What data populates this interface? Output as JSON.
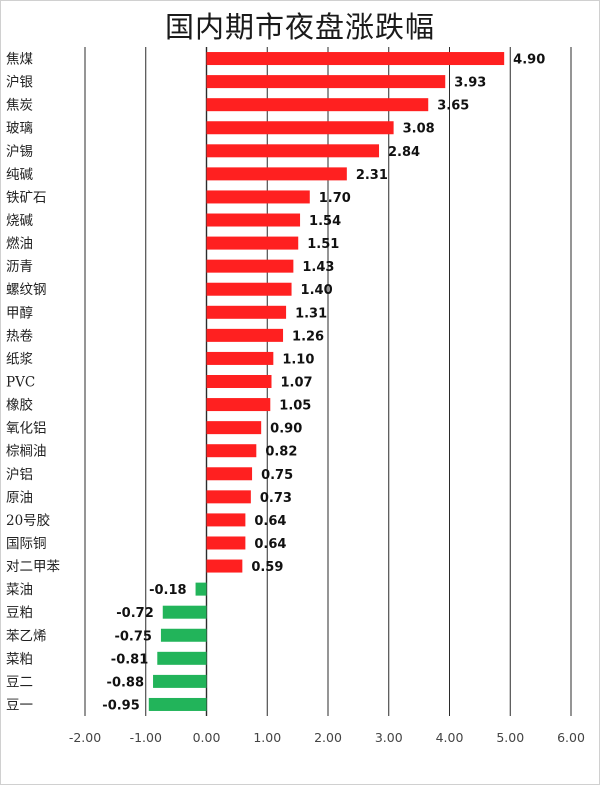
{
  "chart_data": {
    "type": "bar",
    "orientation": "horizontal",
    "title": "国内期市夜盘涨跌幅",
    "categories": [
      "焦煤",
      "沪银",
      "焦炭",
      "玻璃",
      "沪锡",
      "纯碱",
      "铁矿石",
      "烧碱",
      "燃油",
      "沥青",
      "螺纹钢",
      "甲醇",
      "热卷",
      "纸浆",
      "PVC",
      "橡胶",
      "氧化铝",
      "棕榈油",
      "沪铝",
      "原油",
      "20号胶",
      "国际铜",
      "对二甲苯",
      "菜油",
      "豆粕",
      "苯乙烯",
      "菜粕",
      "豆二",
      "豆一"
    ],
    "values": [
      4.9,
      3.93,
      3.65,
      3.08,
      2.84,
      2.31,
      1.7,
      1.54,
      1.51,
      1.43,
      1.4,
      1.31,
      1.26,
      1.1,
      1.07,
      1.05,
      0.9,
      0.82,
      0.75,
      0.73,
      0.64,
      0.64,
      0.59,
      -0.18,
      -0.72,
      -0.75,
      -0.81,
      -0.88,
      -0.95
    ],
    "value_labels": [
      "4.90",
      "3.93",
      "3.65",
      "3.08",
      "2.84",
      "2.31",
      "1.70",
      "1.54",
      "1.51",
      "1.43",
      "1.40",
      "1.31",
      "1.26",
      "1.10",
      "1.07",
      "1.05",
      "0.90",
      "0.82",
      "0.75",
      "0.73",
      "0.64",
      "0.64",
      "0.59",
      "-0.18",
      "-0.72",
      "-0.75",
      "-0.81",
      "-0.88",
      "-0.95"
    ],
    "xlim": [
      -2.0,
      6.0
    ],
    "x_ticks": [
      -2,
      -1,
      0,
      1,
      2,
      3,
      4,
      5,
      6
    ],
    "x_tick_labels": [
      "-2.00",
      "-1.00",
      "0.00",
      "1.00",
      "2.00",
      "3.00",
      "4.00",
      "5.00",
      "6.00"
    ],
    "grid": "vertical",
    "xlabel": "",
    "ylabel": "",
    "colors": {
      "positive": "#ff2020",
      "negative": "#22b45a",
      "grid": "#2b2b2b"
    }
  }
}
